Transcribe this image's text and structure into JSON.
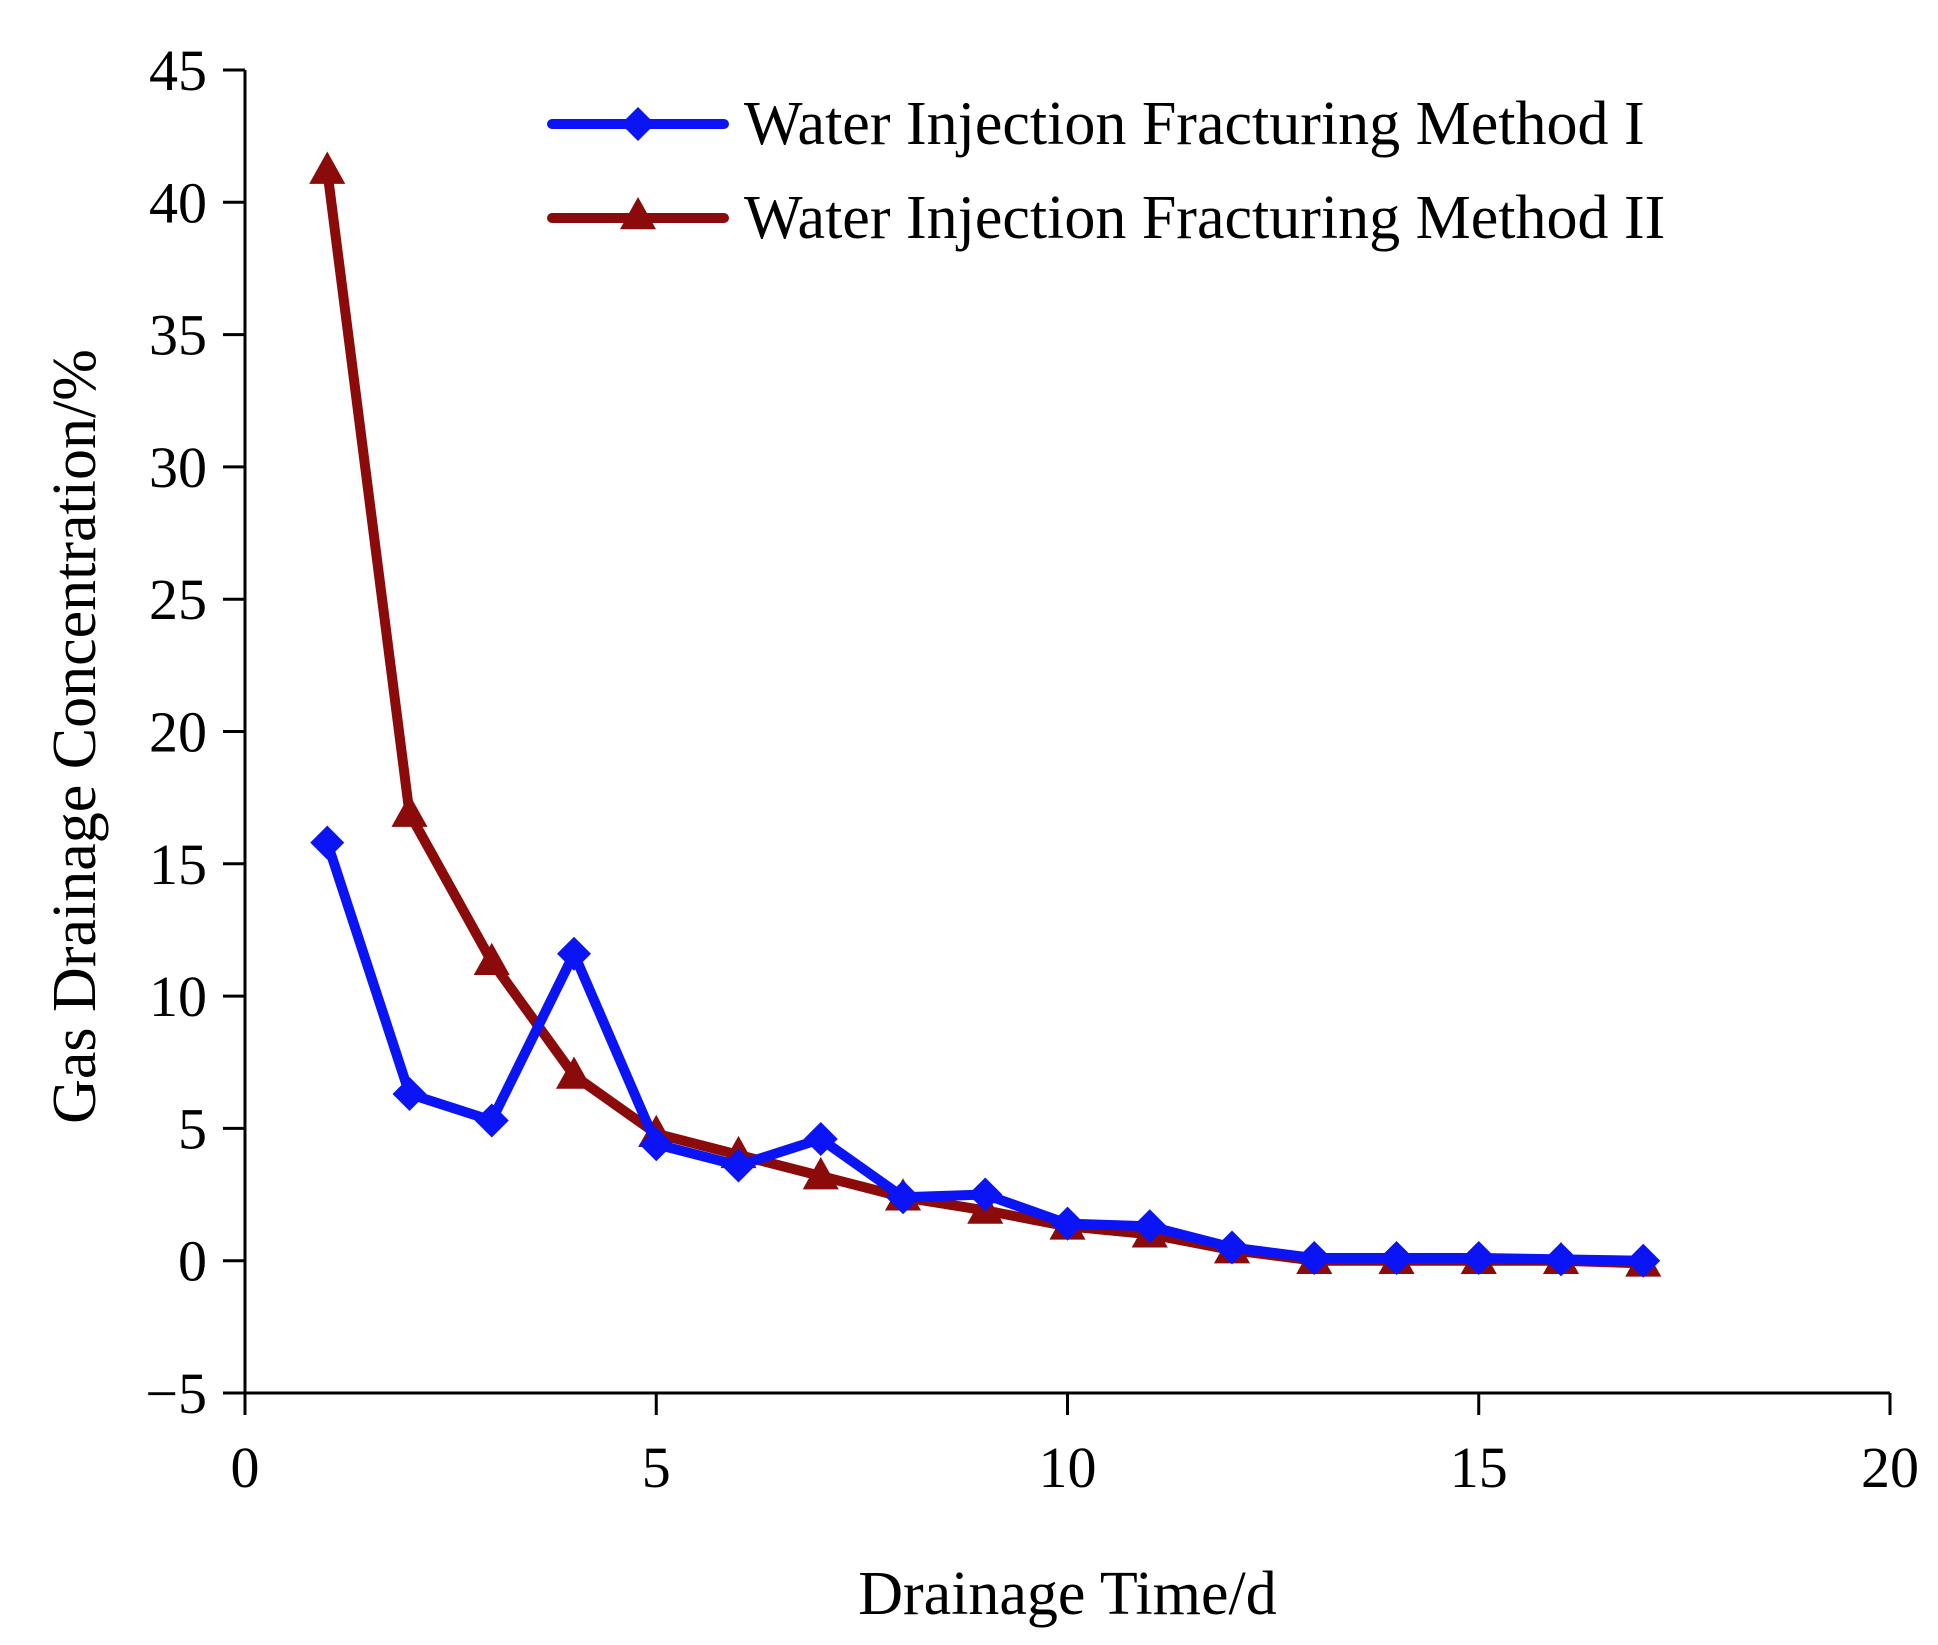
{
  "chart_data": {
    "type": "line",
    "title": "",
    "xlabel": "Drainage Time/d",
    "ylabel": "Gas Drainage Concentration/%",
    "xlim": [
      0,
      20
    ],
    "ylim": [
      -5,
      45
    ],
    "xticks": [
      0,
      5,
      10,
      15,
      20
    ],
    "yticks": [
      -5,
      0,
      5,
      10,
      15,
      20,
      25,
      30,
      35,
      40,
      45
    ],
    "xtick_labels": [
      "0",
      "5",
      "10",
      "15",
      "20"
    ],
    "ytick_labels": [
      "−5",
      "0",
      "5",
      "10",
      "15",
      "20",
      "25",
      "30",
      "35",
      "40",
      "45"
    ],
    "grid": false,
    "legend_position": "top-right",
    "x": [
      1,
      2,
      3,
      4,
      5,
      6,
      7,
      8,
      9,
      10,
      11,
      12,
      13,
      14,
      15,
      16,
      17
    ],
    "series": [
      {
        "name": "Water Injection Fracturing Method I",
        "color": "#0a14f5",
        "marker": "diamond",
        "values": [
          15.8,
          6.3,
          5.3,
          11.6,
          4.4,
          3.6,
          4.6,
          2.4,
          2.5,
          1.4,
          1.3,
          0.5,
          0.1,
          0.1,
          0.1,
          0.05,
          0.0
        ]
      },
      {
        "name": "Water Injection Fracturing Method II",
        "color": "#8b0a0a",
        "marker": "triangle",
        "values": [
          41.2,
          16.9,
          11.3,
          7.0,
          4.8,
          4.0,
          3.2,
          2.4,
          1.9,
          1.3,
          1.0,
          0.4,
          0.0,
          0.0,
          0.0,
          0.0,
          -0.1
        ]
      }
    ]
  }
}
